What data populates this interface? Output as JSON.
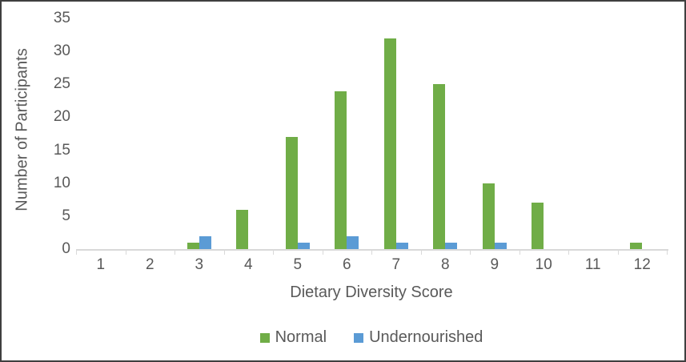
{
  "figure": {
    "background": "#ffffff",
    "border_color": "#3f3f3f"
  },
  "chart_data": {
    "type": "bar",
    "title": "",
    "xlabel": "Dietary Diversity Score",
    "ylabel": "Number of Participants",
    "categories": [
      "1",
      "2",
      "3",
      "4",
      "5",
      "6",
      "7",
      "8",
      "9",
      "10",
      "11",
      "12"
    ],
    "series": [
      {
        "name": "Normal",
        "color": "#70AD47",
        "values": [
          0,
          0,
          1,
          6,
          17,
          24,
          32,
          25,
          10,
          7,
          0,
          1
        ]
      },
      {
        "name": "Undernourished",
        "color": "#5B9BD5",
        "values": [
          0,
          0,
          2,
          0,
          1,
          2,
          1,
          1,
          1,
          0,
          0,
          0
        ]
      }
    ],
    "ylim": [
      0,
      35
    ],
    "ytick_step": 5,
    "yticks": [
      "0",
      "5",
      "10",
      "15",
      "20",
      "25",
      "30",
      "35"
    ],
    "grid": false,
    "legend_position": "bottom",
    "axis_color": "#D9D9D9",
    "text_color": "#595959"
  }
}
